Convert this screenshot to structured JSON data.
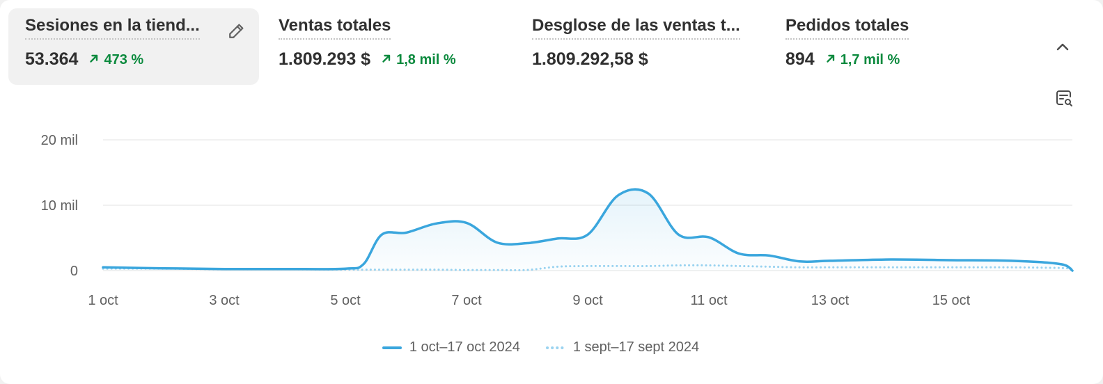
{
  "metrics": [
    {
      "title": "Sesiones en la tiend...",
      "value": "53.364",
      "change": "473 %"
    },
    {
      "title": "Ventas totales",
      "value": "1.809.293 $",
      "change": "1,8 mil %"
    },
    {
      "title": "Desglose de las ventas t...",
      "value": "1.809.292,58 $",
      "change": ""
    },
    {
      "title": "Pedidos totales",
      "value": "894",
      "change": "1,7 mil %"
    }
  ],
  "icons": {
    "edit": "pencil-icon",
    "collapse": "chevron-up-icon",
    "explore": "explore-data-icon",
    "trend": "arrow-up-right-icon"
  },
  "colors": {
    "current_series": "#3aa6dd",
    "previous_series": "#9ad3f0",
    "positive_change": "#0c8a3e",
    "gridline": "#e3e3e3"
  },
  "chart_data": {
    "type": "line",
    "y_ticks": [
      "20 mil",
      "10 mil",
      "0"
    ],
    "x_ticks": [
      "1 oct",
      "3 oct",
      "5 oct",
      "7 oct",
      "9 oct",
      "11 oct",
      "13 oct",
      "15 oct"
    ],
    "ylim": [
      0,
      20000
    ],
    "x": [
      1,
      2,
      3,
      4,
      5,
      5.3,
      5.6,
      6,
      6.5,
      7,
      7.5,
      8,
      8.5,
      9,
      9.5,
      10,
      10.5,
      11,
      11.5,
      12,
      12.5,
      13,
      14,
      15,
      16,
      16.8,
      17
    ],
    "series": [
      {
        "name": "1 oct–17 oct 2024",
        "style": "solid",
        "values": [
          500,
          350,
          250,
          250,
          300,
          1000,
          5500,
          5800,
          7200,
          7300,
          4300,
          4200,
          4900,
          5500,
          11500,
          11800,
          5500,
          5100,
          2600,
          2300,
          1400,
          1500,
          1700,
          1600,
          1500,
          1000,
          0
        ]
      },
      {
        "name": "1 sept–17 sept 2024",
        "style": "dotted",
        "values": [
          300,
          300,
          200,
          200,
          150,
          150,
          150,
          150,
          150,
          100,
          100,
          100,
          600,
          700,
          700,
          700,
          800,
          800,
          700,
          600,
          500,
          500,
          500,
          500,
          500,
          400,
          300
        ]
      }
    ],
    "x_range": [
      1,
      17
    ],
    "grid": true,
    "legend_position": "bottom-center"
  }
}
